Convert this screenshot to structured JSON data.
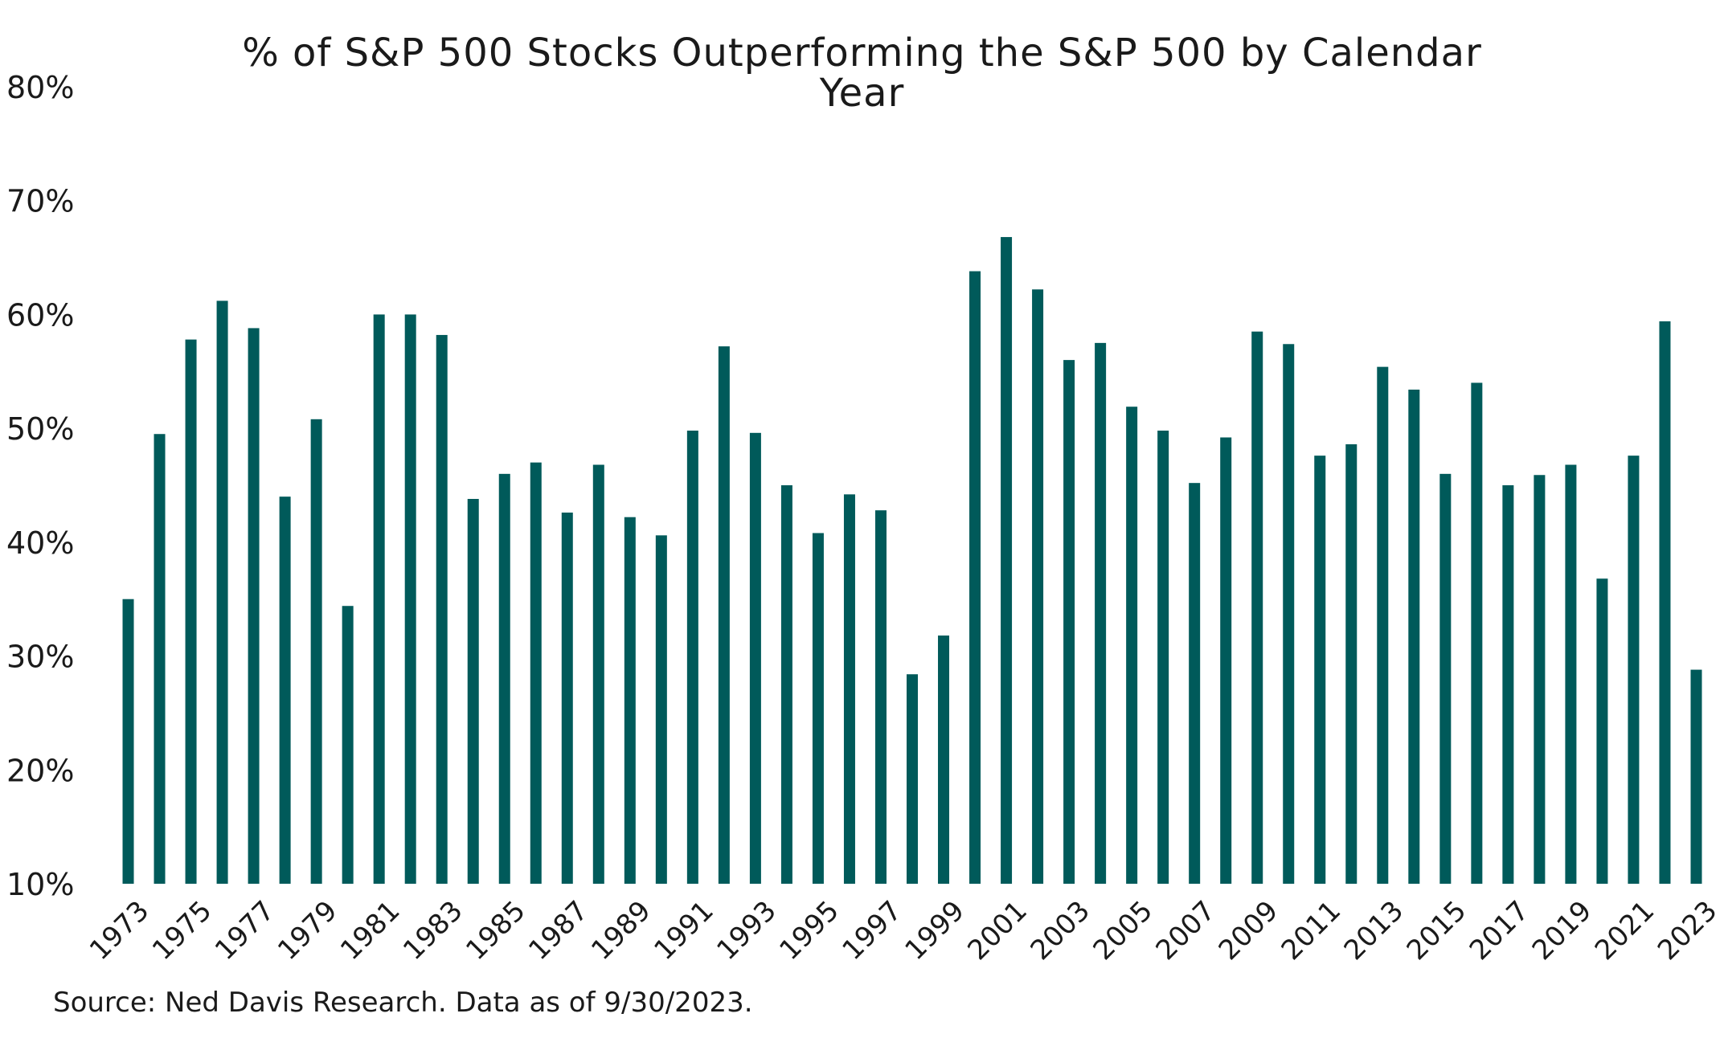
{
  "chart_data": {
    "type": "bar",
    "title_lines": [
      "% of S&P 500 Stocks Outperforming the S&P 500 by Calendar",
      "Year"
    ],
    "source": "Source: Ned Davis Research. Data as of 9/30/2023.",
    "color": "#005a5a",
    "ylim": [
      10,
      80
    ],
    "yticks": [
      "10%",
      "20%",
      "30%",
      "40%",
      "50%",
      "60%",
      "70%",
      "80%"
    ],
    "ytick_values": [
      10,
      20,
      30,
      40,
      50,
      60,
      70,
      80
    ],
    "grid": false,
    "categories": [
      "1973",
      "1974",
      "1975",
      "1976",
      "1977",
      "1978",
      "1979",
      "1980",
      "1981",
      "1982",
      "1983",
      "1984",
      "1985",
      "1986",
      "1987",
      "1988",
      "1989",
      "1990",
      "1991",
      "1992",
      "1993",
      "1994",
      "1995",
      "1996",
      "1997",
      "1998",
      "1999",
      "2000",
      "2001",
      "2002",
      "2003",
      "2004",
      "2005",
      "2006",
      "2007",
      "2008",
      "2009",
      "2010",
      "2011",
      "2012",
      "2013",
      "2014",
      "2015",
      "2016",
      "2017",
      "2018",
      "2019",
      "2020",
      "2021",
      "2022",
      "2023"
    ],
    "xtick_labels": [
      "1973",
      "1975",
      "1977",
      "1979",
      "1981",
      "1983",
      "1985",
      "1987",
      "1989",
      "1991",
      "1993",
      "1995",
      "1997",
      "1999",
      "2001",
      "2003",
      "2005",
      "2007",
      "2009",
      "2011",
      "2013",
      "2015",
      "2017",
      "2019",
      "2021",
      "2023"
    ],
    "values": [
      35.0,
      49.5,
      57.8,
      61.2,
      58.8,
      44.0,
      50.8,
      34.4,
      60.0,
      60.0,
      58.2,
      43.8,
      46.0,
      47.0,
      42.6,
      46.8,
      42.2,
      40.6,
      49.8,
      57.2,
      49.6,
      45.0,
      40.8,
      44.2,
      42.8,
      28.4,
      31.8,
      63.8,
      66.8,
      62.2,
      56.0,
      57.5,
      51.9,
      49.8,
      45.2,
      49.2,
      58.5,
      57.4,
      47.6,
      48.6,
      55.4,
      53.4,
      46.0,
      54.0,
      45.0,
      45.9,
      46.8,
      36.8,
      47.6,
      59.4,
      28.8
    ]
  }
}
